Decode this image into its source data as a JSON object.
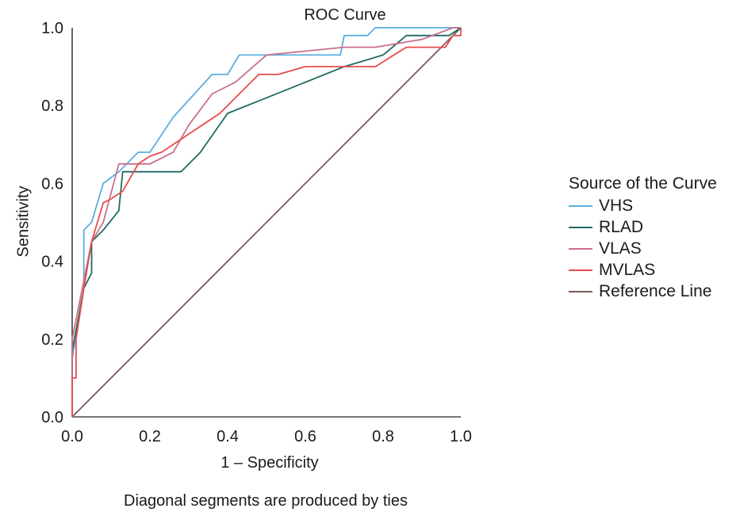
{
  "chart_data": {
    "type": "line",
    "title": "ROC Curve",
    "xlabel": "1 – Specificity",
    "ylabel": "Sensitivity",
    "footnote": "Diagonal segments are produced by ties",
    "xlim": [
      0,
      1
    ],
    "ylim": [
      0,
      1
    ],
    "x_ticks": [
      "0.0",
      "0.2",
      "0.4",
      "0.6",
      "0.8",
      "1.0"
    ],
    "y_ticks": [
      "0.0",
      "0.2",
      "0.4",
      "0.6",
      "0.8",
      "1.0"
    ],
    "grid": false,
    "legend_title": "Source of the Curve",
    "legend_position": "right",
    "series": [
      {
        "name": "VHS",
        "color": "#5aafe0",
        "points": [
          [
            0,
            0
          ],
          [
            0,
            0.15
          ],
          [
            0.03,
            0.33
          ],
          [
            0.03,
            0.42
          ],
          [
            0.03,
            0.48
          ],
          [
            0.05,
            0.5
          ],
          [
            0.08,
            0.6
          ],
          [
            0.12,
            0.63
          ],
          [
            0.17,
            0.68
          ],
          [
            0.2,
            0.68
          ],
          [
            0.26,
            0.77
          ],
          [
            0.36,
            0.88
          ],
          [
            0.4,
            0.88
          ],
          [
            0.43,
            0.93
          ],
          [
            0.69,
            0.93
          ],
          [
            0.7,
            0.98
          ],
          [
            0.76,
            0.98
          ],
          [
            0.78,
            1.0
          ],
          [
            1.0,
            1.0
          ]
        ]
      },
      {
        "name": "RLAD",
        "color": "#1f6b63",
        "points": [
          [
            0,
            0
          ],
          [
            0,
            0.17
          ],
          [
            0.03,
            0.33
          ],
          [
            0.05,
            0.37
          ],
          [
            0.05,
            0.45
          ],
          [
            0.08,
            0.48
          ],
          [
            0.12,
            0.53
          ],
          [
            0.13,
            0.63
          ],
          [
            0.28,
            0.63
          ],
          [
            0.33,
            0.68
          ],
          [
            0.4,
            0.78
          ],
          [
            0.5,
            0.82
          ],
          [
            0.7,
            0.9
          ],
          [
            0.8,
            0.93
          ],
          [
            0.86,
            0.98
          ],
          [
            0.97,
            0.98
          ],
          [
            1.0,
            1.0
          ]
        ]
      },
      {
        "name": "VLAS",
        "color": "#c9708c",
        "points": [
          [
            0,
            0
          ],
          [
            0,
            0.2
          ],
          [
            0.03,
            0.35
          ],
          [
            0.05,
            0.45
          ],
          [
            0.08,
            0.5
          ],
          [
            0.12,
            0.65
          ],
          [
            0.2,
            0.65
          ],
          [
            0.26,
            0.68
          ],
          [
            0.3,
            0.75
          ],
          [
            0.36,
            0.83
          ],
          [
            0.42,
            0.86
          ],
          [
            0.5,
            0.93
          ],
          [
            0.7,
            0.95
          ],
          [
            0.78,
            0.95
          ],
          [
            0.9,
            0.97
          ],
          [
            0.98,
            1.0
          ],
          [
            1.0,
            1.0
          ]
        ]
      },
      {
        "name": "MVLAS",
        "color": "#e64c4c",
        "points": [
          [
            0,
            0
          ],
          [
            0,
            0.1
          ],
          [
            0.01,
            0.1
          ],
          [
            0.01,
            0.2
          ],
          [
            0.03,
            0.33
          ],
          [
            0.05,
            0.45
          ],
          [
            0.08,
            0.55
          ],
          [
            0.1,
            0.56
          ],
          [
            0.13,
            0.58
          ],
          [
            0.17,
            0.65
          ],
          [
            0.2,
            0.67
          ],
          [
            0.23,
            0.68
          ],
          [
            0.26,
            0.7
          ],
          [
            0.38,
            0.78
          ],
          [
            0.48,
            0.88
          ],
          [
            0.53,
            0.88
          ],
          [
            0.6,
            0.9
          ],
          [
            0.78,
            0.9
          ],
          [
            0.86,
            0.95
          ],
          [
            0.96,
            0.95
          ],
          [
            0.98,
            0.98
          ],
          [
            1.0,
            0.98
          ],
          [
            1.0,
            1.0
          ]
        ]
      },
      {
        "name": "Reference Line",
        "color": "#7a5a5a",
        "points": [
          [
            0,
            0
          ],
          [
            1,
            1
          ]
        ]
      }
    ]
  }
}
